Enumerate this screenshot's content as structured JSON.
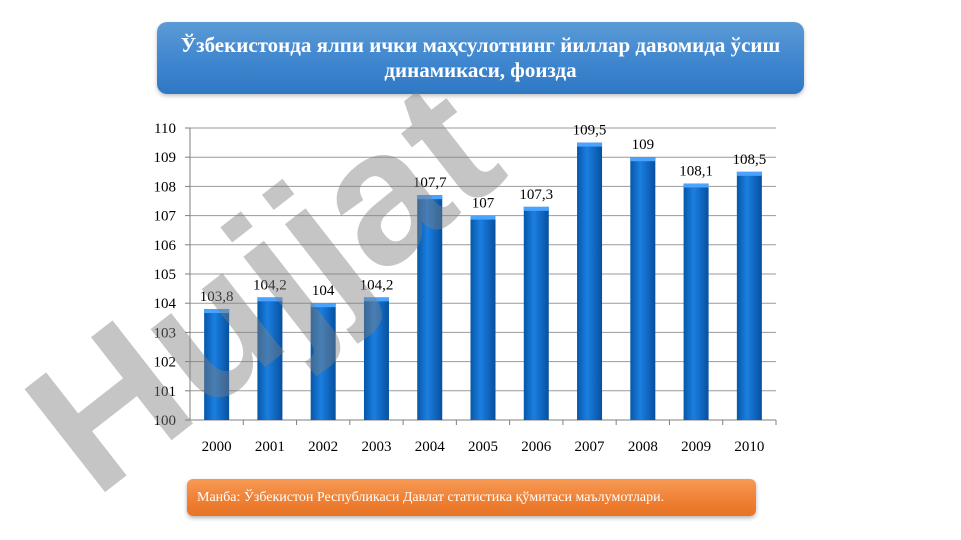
{
  "header": {
    "title": "Ўзбекистонда ялпи ички маҳсулотнинг йиллар давомида ўсиш динамикаси, фоизда"
  },
  "footer": {
    "source": "Манба: Ўзбекистон Республикаси Давлат статистика қўмитаси маълумотлари."
  },
  "watermark": {
    "text": "Hujjat"
  },
  "colors": {
    "bar": "#0a6fd0",
    "bar_top": "#4aa3ff",
    "title_bg": "#3f86cf",
    "source_bg": "#ee7f33",
    "watermark_gray": "#7f7f7f",
    "watermark_purple": "#9f86ff"
  },
  "chart_data": {
    "type": "bar",
    "title": "Ўзбекистонда ялпи ички маҳсулотнинг йиллар давомида ўсиш динамикаси, фоизда",
    "xlabel": "",
    "ylabel": "",
    "categories": [
      "2000",
      "2001",
      "2002",
      "2003",
      "2004",
      "2005",
      "2006",
      "2007",
      "2008",
      "2009",
      "2010"
    ],
    "values": [
      103.8,
      104.2,
      104,
      104.2,
      107.7,
      107,
      107.3,
      109.5,
      109,
      108.1,
      108.5
    ],
    "value_labels": [
      "103,8",
      "104,2",
      "104",
      "104,2",
      "107,7",
      "107",
      "107,3",
      "109,5",
      "109",
      "108,1",
      "108,5"
    ],
    "ylim": [
      100,
      110
    ],
    "yticks": [
      "100",
      "101",
      "102",
      "103",
      "104",
      "105",
      "106",
      "107",
      "108",
      "109",
      "110"
    ],
    "grid": true,
    "legend": "none"
  }
}
